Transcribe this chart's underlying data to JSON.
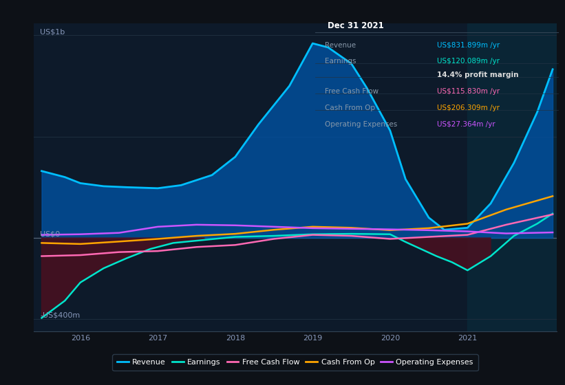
{
  "bg_color": "#0d1117",
  "chart_bg": "#0d1a2a",
  "divider_x": 2021.0,
  "divider_color": "#0a2535",
  "xlim": [
    2015.4,
    2022.15
  ],
  "ylim": [
    -460,
    1060
  ],
  "xticks": [
    2016,
    2017,
    2018,
    2019,
    2020,
    2021
  ],
  "grid_color": "#1e2e3e",
  "zero_line_color": "#556677",
  "info_title": "Dec 31 2021",
  "info_rows": [
    {
      "label": "Revenue",
      "value": "US$831.899m /yr",
      "vc": "#00bfff"
    },
    {
      "label": "Earnings",
      "value": "US$120.089m /yr",
      "vc": "#00e5cc"
    },
    {
      "label": "",
      "value": "14.4% profit margin",
      "vc": "#dddddd"
    },
    {
      "label": "Free Cash Flow",
      "value": "US$115.830m /yr",
      "vc": "#ff69b4"
    },
    {
      "label": "Cash From Op",
      "value": "US$206.309m /yr",
      "vc": "#ffa500"
    },
    {
      "label": "Operating Expenses",
      "value": "US$27.364m /yr",
      "vc": "#cc55ff"
    }
  ],
  "revenue_x": [
    2015.5,
    2015.8,
    2016.0,
    2016.3,
    2016.6,
    2017.0,
    2017.3,
    2017.7,
    2018.0,
    2018.3,
    2018.7,
    2019.0,
    2019.2,
    2019.5,
    2019.7,
    2020.0,
    2020.2,
    2020.5,
    2020.7,
    2021.0,
    2021.3,
    2021.6,
    2021.9,
    2022.1
  ],
  "revenue_y": [
    330,
    300,
    270,
    255,
    250,
    245,
    260,
    310,
    400,
    560,
    750,
    960,
    940,
    860,
    740,
    530,
    290,
    100,
    40,
    50,
    170,
    370,
    620,
    832
  ],
  "earnings_x": [
    2015.5,
    2015.8,
    2016.0,
    2016.3,
    2016.6,
    2016.9,
    2017.2,
    2017.6,
    2018.0,
    2018.5,
    2019.0,
    2019.5,
    2020.0,
    2020.2,
    2020.4,
    2020.6,
    2020.8,
    2021.0,
    2021.3,
    2021.6,
    2021.9,
    2022.1
  ],
  "earnings_y": [
    -395,
    -310,
    -220,
    -150,
    -100,
    -55,
    -25,
    -10,
    5,
    10,
    18,
    20,
    18,
    -20,
    -55,
    -90,
    -120,
    -160,
    -90,
    10,
    70,
    120
  ],
  "fcf_x": [
    2015.5,
    2016.0,
    2016.5,
    2017.0,
    2017.5,
    2018.0,
    2018.5,
    2019.0,
    2019.5,
    2020.0,
    2020.5,
    2021.0,
    2021.5,
    2022.1
  ],
  "fcf_y": [
    -90,
    -85,
    -70,
    -65,
    -45,
    -35,
    -5,
    15,
    10,
    -5,
    5,
    15,
    65,
    116
  ],
  "cfo_x": [
    2015.5,
    2016.0,
    2016.5,
    2017.0,
    2017.5,
    2018.0,
    2018.5,
    2019.0,
    2019.5,
    2020.0,
    2020.5,
    2021.0,
    2021.5,
    2022.1
  ],
  "cfo_y": [
    -25,
    -30,
    -18,
    -5,
    10,
    20,
    40,
    55,
    50,
    38,
    48,
    70,
    140,
    206
  ],
  "opex_x": [
    2015.5,
    2016.0,
    2016.5,
    2017.0,
    2017.5,
    2018.0,
    2018.5,
    2019.0,
    2019.5,
    2020.0,
    2020.5,
    2021.0,
    2021.5,
    2022.1
  ],
  "opex_y": [
    15,
    18,
    25,
    55,
    65,
    62,
    55,
    48,
    45,
    42,
    38,
    32,
    22,
    27
  ],
  "legend_items": [
    {
      "label": "Revenue",
      "color": "#00bfff"
    },
    {
      "label": "Earnings",
      "color": "#00e5cc"
    },
    {
      "label": "Free Cash Flow",
      "color": "#ff69b4"
    },
    {
      "label": "Cash From Op",
      "color": "#ffa500"
    },
    {
      "label": "Operating Expenses",
      "color": "#cc55ff"
    }
  ]
}
